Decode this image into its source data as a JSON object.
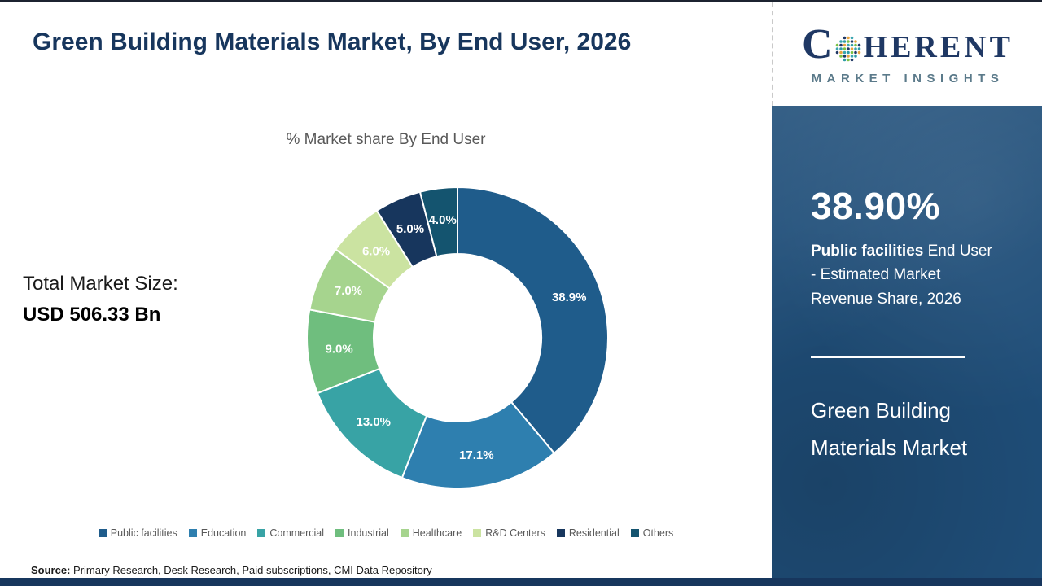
{
  "page": {
    "title": "Green Building Materials Market, By End User, 2026",
    "total_market_label": "Total Market Size:",
    "total_market_value": "USD 506.33 Bn",
    "source_label": "Source:",
    "source_text": " Primary Research, Desk Research, Paid subscriptions, CMI Data Repository"
  },
  "chart_data": {
    "type": "pie",
    "donut": true,
    "title": "% Market share By End User",
    "categories": [
      "Public facilities",
      "Education",
      "Commercial",
      "Industrial",
      "Healthcare",
      "R&D Centers",
      "Residential",
      "Others"
    ],
    "values": [
      38.9,
      17.1,
      13.0,
      9.0,
      7.0,
      6.0,
      5.0,
      4.0
    ],
    "labels": [
      "38.9%",
      "17.1%",
      "13.0%",
      "9.0%",
      "7.0%",
      "6.0%",
      "5.0%",
      "4.0%"
    ],
    "colors": [
      "#1F5C8B",
      "#2E7FAF",
      "#38A3A5",
      "#6FBE7E",
      "#A6D48E",
      "#CBE3A1",
      "#17365D",
      "#14546F"
    ],
    "legend_position": "bottom",
    "start_angle_deg": 0,
    "direction": "clockwise"
  },
  "side_panel": {
    "stat_value": "38.90%",
    "stat_bold": "Public facilities",
    "stat_rest": " End User - Estimated Market Revenue Share, 2026",
    "market_name": "Green Building Materials Market",
    "background_color": "#1F4E79"
  },
  "logo": {
    "c": "C",
    "rest": "HERENT",
    "subtitle": "MARKET INSIGHTS"
  }
}
